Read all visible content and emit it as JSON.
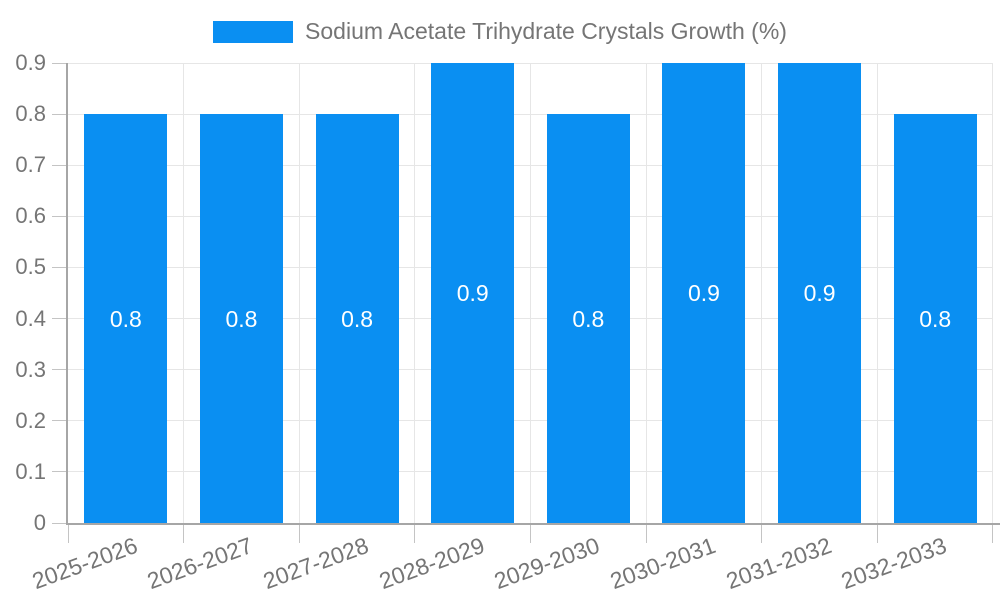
{
  "legend": {
    "label": "Sodium Acetate Trihydrate Crystals Growth (%)",
    "swatch_color": "#0a8ff2"
  },
  "chart_data": {
    "type": "bar",
    "title": "Sodium Acetate Trihydrate Crystals Growth (%)",
    "categories": [
      "2025-2026",
      "2026-2027",
      "2027-2028",
      "2028-2029",
      "2029-2030",
      "2030-2031",
      "2031-2032",
      "2032-2033"
    ],
    "series": [
      {
        "name": "Sodium Acetate Trihydrate Crystals Growth (%)",
        "color": "#0a8ff2",
        "values": [
          0.8,
          0.8,
          0.8,
          0.9,
          0.8,
          0.9,
          0.9,
          0.8
        ]
      }
    ],
    "bar_value_labels": [
      "0.8",
      "0.8",
      "0.8",
      "0.9",
      "0.8",
      "0.9",
      "0.9",
      "0.8"
    ],
    "xlabel": "",
    "ylabel": "",
    "ylim": [
      0,
      0.9
    ],
    "y_ticks": [
      {
        "value": 0.0,
        "label": "0"
      },
      {
        "value": 0.1,
        "label": "0.1"
      },
      {
        "value": 0.2,
        "label": "0.2"
      },
      {
        "value": 0.3,
        "label": "0.3"
      },
      {
        "value": 0.4,
        "label": "0.4"
      },
      {
        "value": 0.5,
        "label": "0.5"
      },
      {
        "value": 0.6,
        "label": "0.6"
      },
      {
        "value": 0.7,
        "label": "0.7"
      },
      {
        "value": 0.8,
        "label": "0.8"
      },
      {
        "value": 0.9,
        "label": "0.9"
      }
    ],
    "grid": true,
    "legend_position": "top",
    "x_label_rotation_deg": -20,
    "colors": {
      "bar": "#0a8ff2",
      "bar_label": "#ffffff",
      "axis_text": "#757575",
      "grid_line": "#e6e6e6",
      "tick_line": "#c4c4c4",
      "axis_line": "#a6a6a6",
      "background": "#ffffff"
    }
  }
}
